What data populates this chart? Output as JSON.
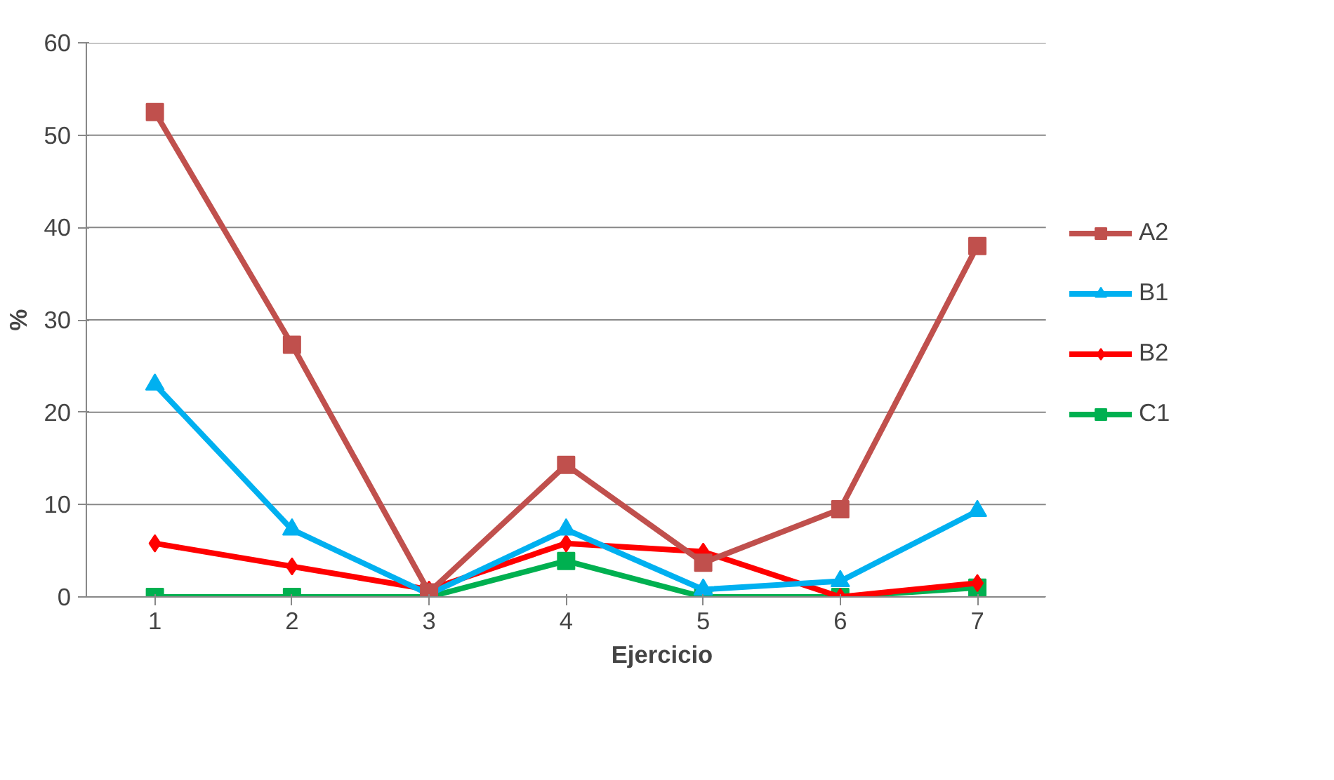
{
  "chart_data": {
    "type": "line",
    "xlabel": "Ejercicio",
    "ylabel": "%",
    "categories": [
      "1",
      "2",
      "3",
      "4",
      "5",
      "6",
      "7"
    ],
    "ylim": [
      0,
      60
    ],
    "yticks": [
      0,
      10,
      20,
      30,
      40,
      50,
      60
    ],
    "grid": "y",
    "legend": "right",
    "series": [
      {
        "name": "A2",
        "color": "#c0504d",
        "marker": "square",
        "values": [
          52.5,
          27.3,
          0.5,
          14.3,
          3.7,
          9.5,
          38
        ]
      },
      {
        "name": "B1",
        "color": "#00b0f0",
        "marker": "triangle",
        "values": [
          23,
          7.3,
          0.3,
          7.3,
          0.8,
          1.7,
          9.3
        ]
      },
      {
        "name": "B2",
        "color": "#ff0000",
        "marker": "diamond",
        "values": [
          5.8,
          3.3,
          0.8,
          5.8,
          4.9,
          0,
          1.5
        ]
      },
      {
        "name": "C1",
        "color": "#00b050",
        "marker": "square",
        "values": [
          0,
          0,
          0,
          3.9,
          0,
          0,
          1
        ]
      }
    ]
  }
}
